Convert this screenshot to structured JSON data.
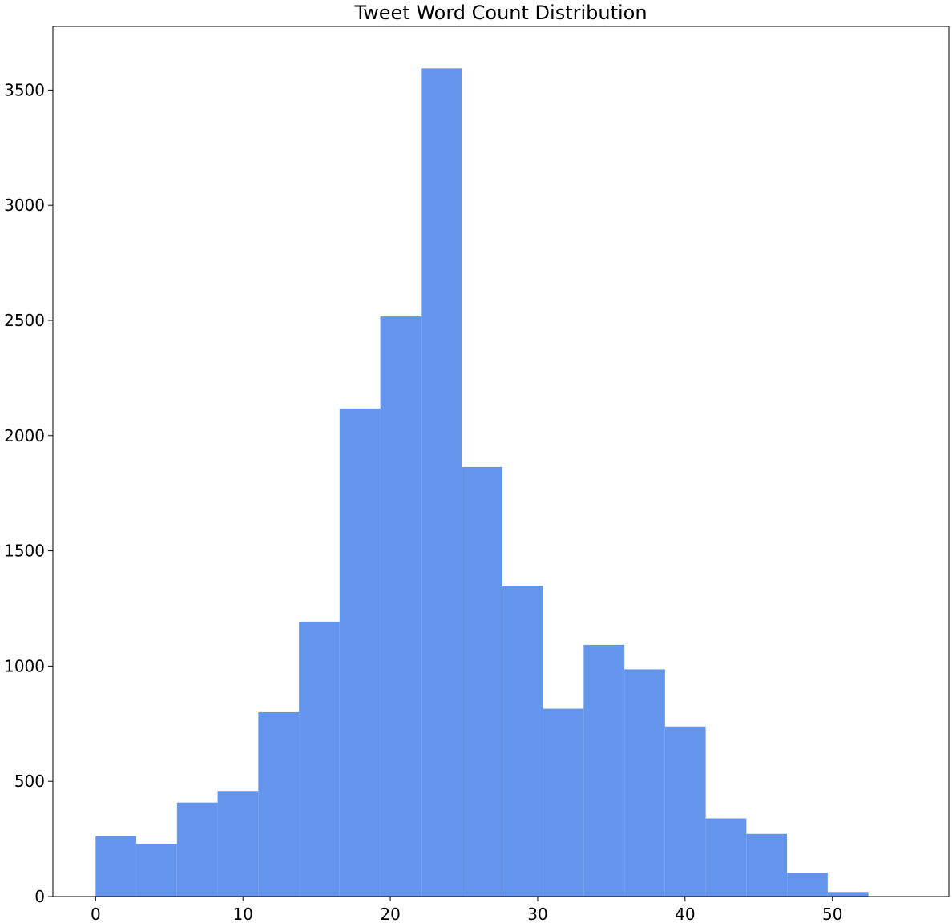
{
  "chart_data": {
    "type": "bar",
    "title": "Tweet Word Count Distribution",
    "xlabel": "",
    "ylabel": "",
    "bins": [
      {
        "x0": 0.0,
        "x1": 2.76,
        "count": 262
      },
      {
        "x0": 2.76,
        "x1": 5.52,
        "count": 228
      },
      {
        "x0": 5.52,
        "x1": 8.28,
        "count": 408
      },
      {
        "x0": 8.28,
        "x1": 11.04,
        "count": 458
      },
      {
        "x0": 11.04,
        "x1": 13.8,
        "count": 800
      },
      {
        "x0": 13.8,
        "x1": 16.56,
        "count": 1193
      },
      {
        "x0": 16.56,
        "x1": 19.32,
        "count": 2118
      },
      {
        "x0": 19.32,
        "x1": 22.08,
        "count": 2517
      },
      {
        "x0": 22.08,
        "x1": 24.84,
        "count": 3594
      },
      {
        "x0": 24.84,
        "x1": 27.6,
        "count": 1864
      },
      {
        "x0": 27.6,
        "x1": 30.36,
        "count": 1348
      },
      {
        "x0": 30.36,
        "x1": 33.12,
        "count": 815
      },
      {
        "x0": 33.12,
        "x1": 35.88,
        "count": 1092
      },
      {
        "x0": 35.88,
        "x1": 38.64,
        "count": 986
      },
      {
        "x0": 38.64,
        "x1": 41.4,
        "count": 738
      },
      {
        "x0": 41.4,
        "x1": 44.16,
        "count": 339
      },
      {
        "x0": 44.16,
        "x1": 46.92,
        "count": 272
      },
      {
        "x0": 46.92,
        "x1": 49.68,
        "count": 103
      },
      {
        "x0": 49.68,
        "x1": 52.44,
        "count": 20
      }
    ],
    "xlim": [
      -2.9,
      57.9
    ],
    "ylim": [
      0,
      3776
    ],
    "x_ticks": [
      0,
      10,
      20,
      30,
      40,
      50
    ],
    "y_ticks": [
      0,
      500,
      1000,
      1500,
      2000,
      2500,
      3000,
      3500
    ],
    "bar_color": "#6495ED",
    "grid": false
  }
}
